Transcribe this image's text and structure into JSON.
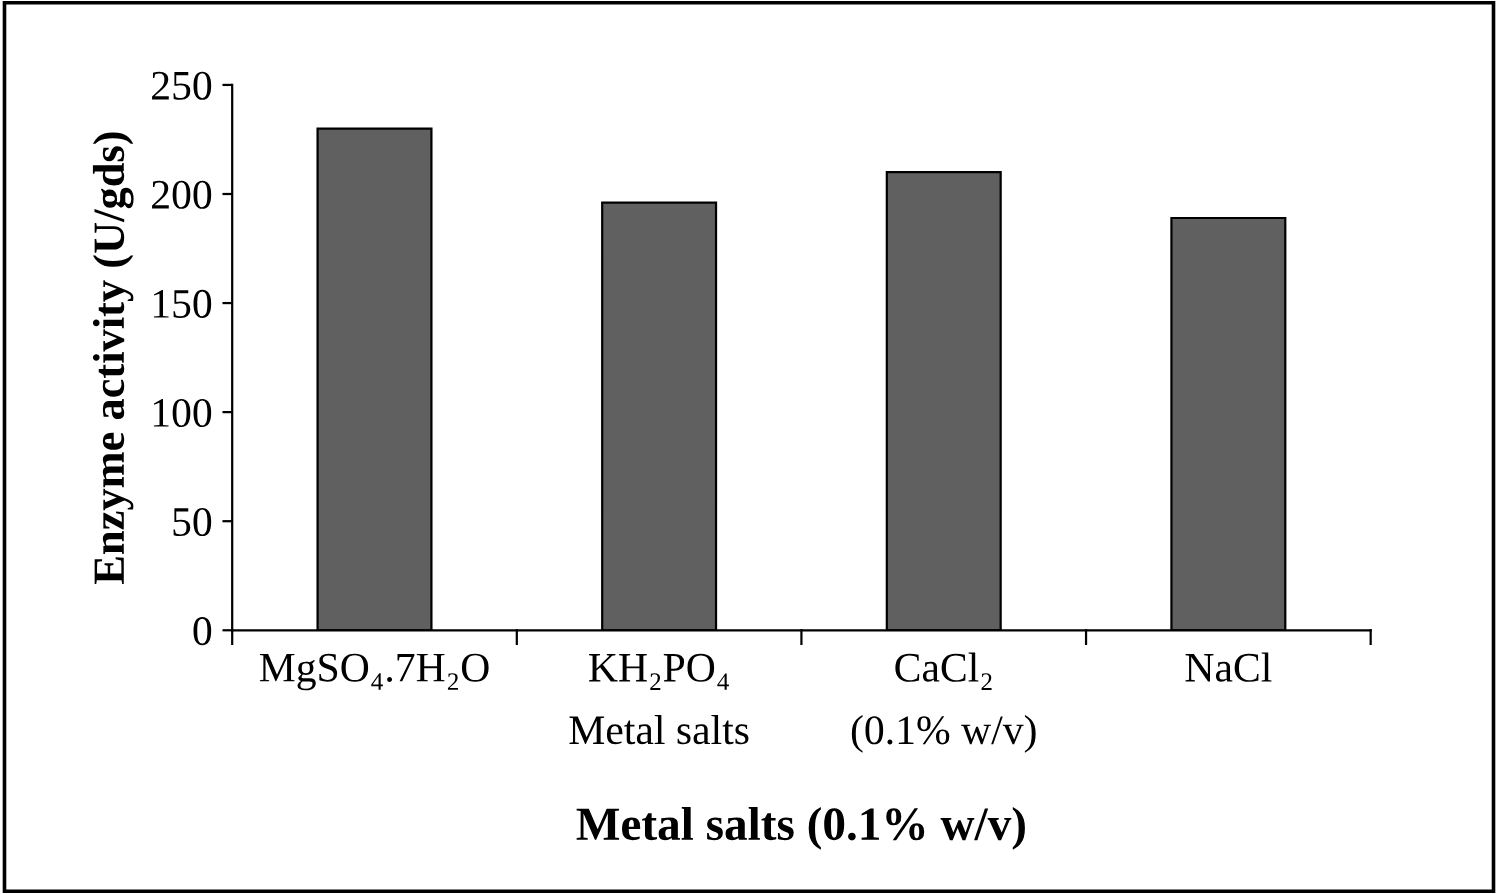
{
  "chart_data": {
    "type": "bar",
    "xlabel": "Metal salts (0.1% w/v)",
    "ylabel": "Enzyme activity (U/gds)",
    "categories": [
      "MgSO₄.7H₂O",
      "KH₂PO₄",
      "CaCl₂",
      "NaCl"
    ],
    "values": [
      230,
      196,
      210,
      189
    ],
    "color": "#606060",
    "ylim": [
      0,
      250
    ],
    "yticks": [
      0,
      50,
      100,
      150,
      200,
      250
    ],
    "grid": false,
    "legend": false,
    "annotations": [
      "Metal salts",
      "(0.1% w/v)"
    ]
  }
}
